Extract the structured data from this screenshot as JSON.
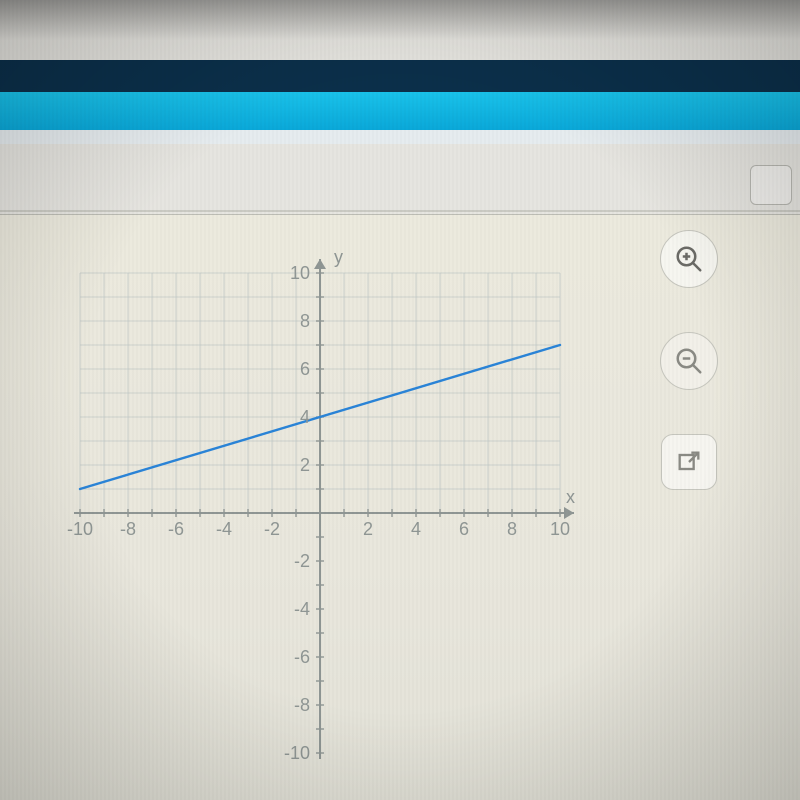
{
  "chart": {
    "type": "line",
    "x_axis_label": "x",
    "y_axis_label": "y",
    "xlim": [
      -10,
      10
    ],
    "ylim": [
      -10,
      10
    ],
    "xtick_step": 2,
    "ytick_step": 2,
    "xticks": [
      -10,
      -8,
      -6,
      -4,
      -2,
      2,
      4,
      6,
      8,
      10
    ],
    "yticks": [
      -10,
      -8,
      -6,
      -4,
      -2,
      2,
      4,
      6,
      8,
      10
    ],
    "grid_step": 1,
    "grid_color": "#bfc8c6",
    "axis_color": "#8f9694",
    "tick_label_color": "#8f9694",
    "tick_label_fontsize": 18,
    "axis_label_fontsize": 18,
    "background_color": "transparent",
    "line": {
      "color": "#2a84d8",
      "width": 2.4,
      "points": [
        [
          -10,
          1
        ],
        [
          10,
          7
        ]
      ]
    },
    "grid_visible_top_only": 0,
    "x_axis_arrow_at_max": true,
    "y_axis_arrow_at_max": true
  },
  "controls": {
    "zoom_in_name": "zoom-in",
    "zoom_out_name": "zoom-out",
    "open_external_name": "open-external"
  }
}
